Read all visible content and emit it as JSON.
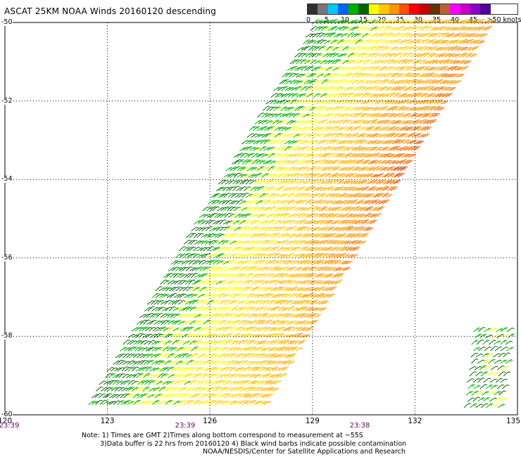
{
  "title": "ASCAT 25KM NOAA Winds 20160120 descending",
  "legend": {
    "labels": [
      "0",
      "5",
      "10",
      "15",
      "20",
      "25",
      "30",
      "35",
      "40",
      "45",
      ">50 knots"
    ],
    "colors": [
      "#303030",
      "#777777",
      "#00c8ff",
      "#0064ff",
      "#00b000",
      "#006400",
      "#ffff00",
      "#ffc800",
      "#ff9600",
      "#ff5000",
      "#ff0000",
      "#c80000",
      "#643200",
      "#b46432",
      "#ff00ff",
      "#c800c8",
      "#8c00c8",
      "#500096"
    ]
  },
  "map": {
    "lat_labels": [
      "-50",
      "-52",
      "-54",
      "-56",
      "-58",
      "-60"
    ],
    "lon_labels": [
      "120",
      "123",
      "126",
      "129",
      "132",
      "135"
    ],
    "lat_range": [
      -60,
      -50
    ],
    "lon_range": [
      120,
      135
    ],
    "grid": true,
    "grid_style": "dotted",
    "times": [
      "23:39",
      "23:39",
      "23:38"
    ]
  },
  "notes": {
    "line1": "Note: 1) Times are GMT 2)Times along bottom correspond to measurement at ~55S",
    "line2": "3)Data buffer is 22 hrs from 20160120 4) Black wind barbs indicate possible contamination",
    "line3": "NOAA/NESDIS/Center for Satellite Applications and Research"
  }
}
